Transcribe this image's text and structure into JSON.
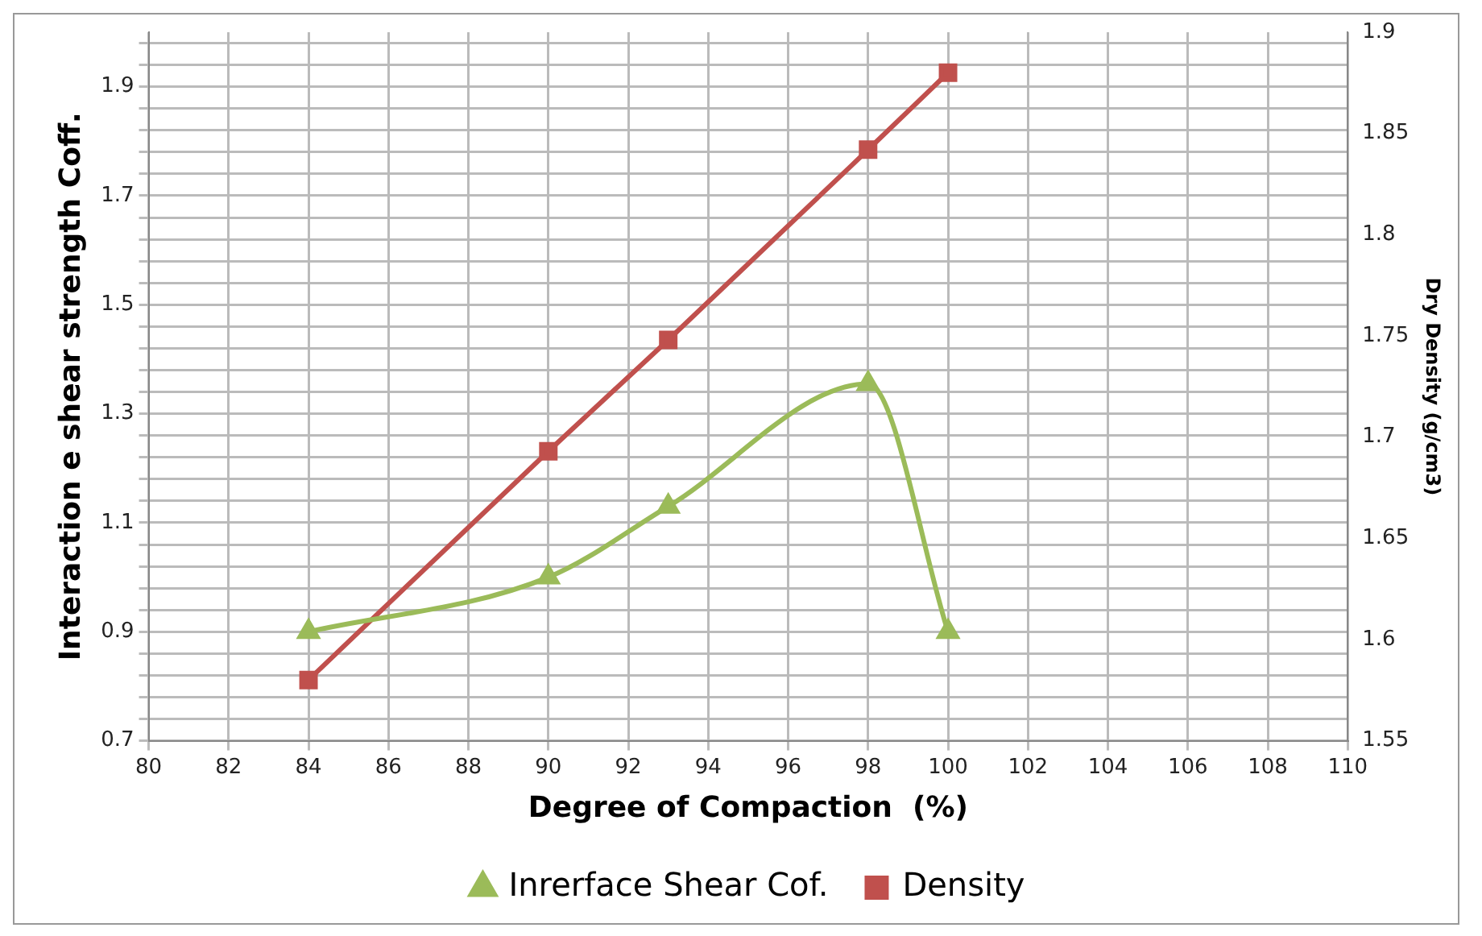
{
  "chart_data": {
    "type": "line",
    "xlabel": "Degree of Compaction  (%)",
    "ylabel": "Interaction e shear strength Coff.",
    "y2label": "Dry Density (g/cm3)",
    "x": [
      84,
      90,
      93,
      98,
      100
    ],
    "series": [
      {
        "name": "Inrerface Shear Cof.",
        "color": "#9bbb59",
        "values": [
          0.9,
          1.0,
          1.13,
          1.355,
          0.9
        ],
        "marker": "triangle"
      },
      {
        "name": "Density",
        "color": "#c0504d",
        "values": [
          1.58,
          1.693,
          1.748,
          1.842,
          1.88
        ],
        "marker": "square",
        "axis": "y2"
      }
    ],
    "xlim": [
      80,
      110
    ],
    "xticks": [
      80,
      82,
      84,
      86,
      88,
      90,
      92,
      94,
      96,
      98,
      100,
      102,
      104,
      106,
      108,
      110
    ],
    "ylim": [
      0.7,
      2.0
    ],
    "yticks": [
      0.7,
      {
        "value": 0.74,
        "label": null
      },
      {
        "value": 0.78,
        "label": null
      },
      {
        "value": 0.82,
        "label": null
      },
      {
        "value": 0.86,
        "label": null
      },
      0.9,
      {
        "value": 0.94,
        "label": null
      },
      {
        "value": 0.98,
        "label": null
      },
      {
        "value": 1.02,
        "label": null
      },
      {
        "value": 1.06,
        "label": null
      },
      1.1,
      {
        "value": 1.14,
        "label": null
      },
      {
        "value": 1.18,
        "label": null
      },
      {
        "value": 1.22,
        "label": null
      },
      {
        "value": 1.26,
        "label": null
      },
      1.3,
      {
        "value": 1.34,
        "label": null
      },
      {
        "value": 1.38,
        "label": null
      },
      {
        "value": 1.42,
        "label": null
      },
      {
        "value": 1.46,
        "label": null
      },
      1.5,
      {
        "value": 1.54,
        "label": null
      },
      {
        "value": 1.58,
        "label": null
      },
      {
        "value": 1.62,
        "label": null
      },
      {
        "value": 1.66,
        "label": null
      },
      1.7,
      {
        "value": 1.74,
        "label": null
      },
      {
        "value": 1.78,
        "label": null
      },
      {
        "value": 1.82,
        "label": null
      },
      {
        "value": 1.86,
        "label": null
      },
      1.9,
      {
        "value": 1.94,
        "label": null
      },
      {
        "value": 1.98,
        "label": null
      }
    ],
    "y2lim": [
      1.55,
      1.9
    ],
    "y2ticks": [
      1.55,
      1.6,
      1.65,
      1.7,
      1.75,
      1.8,
      1.85,
      1.9
    ],
    "grid": true,
    "legend": "bottom"
  }
}
